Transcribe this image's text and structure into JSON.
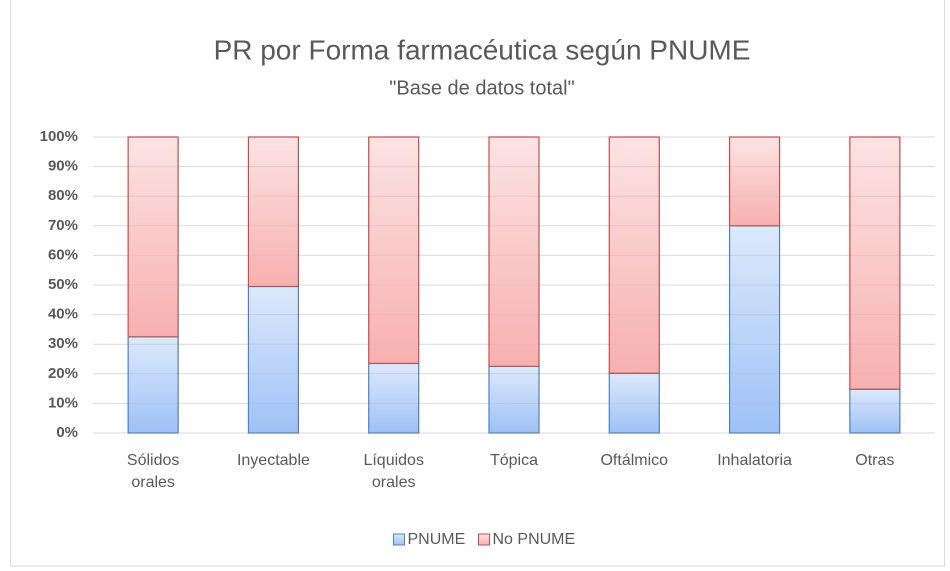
{
  "chart_data": {
    "type": "stacked_bar_percent",
    "title": "PR por Forma farmacéutica según  PNUME",
    "subtitle": "\"Base de datos total\"",
    "categories": [
      "Sólidos orales",
      "Inyectable",
      "Líquidos orales",
      "Tópica",
      "Oftálmico",
      "Inhalatoria",
      "Otras"
    ],
    "series": [
      {
        "name": "PNUME",
        "color": "#9ec1f6",
        "edgecolor": "#4f81bd",
        "values": [
          32.5,
          49.5,
          23.5,
          22.5,
          20.2,
          70,
          14.8
        ]
      },
      {
        "name": "No PNUME",
        "color": "#f7b0b0",
        "edgecolor": "#c0504d",
        "values": [
          67.5,
          50.5,
          76.5,
          77.5,
          79.8,
          30,
          85.2
        ]
      }
    ],
    "ylim": [
      0,
      100
    ],
    "yticks": [
      {
        "value": 0,
        "label": "0%"
      },
      {
        "value": 10,
        "label": "10%"
      },
      {
        "value": 20,
        "label": "20%"
      },
      {
        "value": 30,
        "label": "30%"
      },
      {
        "value": 40,
        "label": "40%"
      },
      {
        "value": 50,
        "label": "50%"
      },
      {
        "value": 60,
        "label": "60%"
      },
      {
        "value": 70,
        "label": "70%"
      },
      {
        "value": 80,
        "label": "80%"
      },
      {
        "value": 90,
        "label": "90%"
      },
      {
        "value": 100,
        "label": "100%"
      }
    ],
    "grid": true,
    "legend": "bottom"
  }
}
